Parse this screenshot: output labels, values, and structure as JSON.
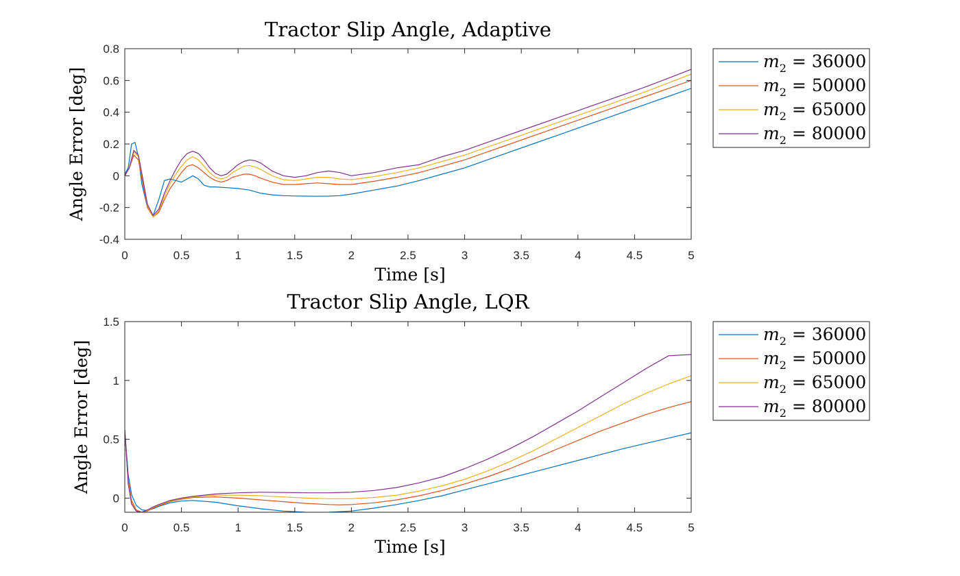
{
  "chart_data": [
    {
      "type": "line",
      "title": "Tractor Slip Angle, Adaptive",
      "xlabel": "Time [s]",
      "ylabel": "Angle Error [deg]",
      "xlim": [
        0,
        5
      ],
      "ylim": [
        -0.4,
        0.8
      ],
      "xticks": [
        0,
        0.5,
        1,
        1.5,
        2,
        2.5,
        3,
        3.5,
        4,
        4.5,
        5
      ],
      "xtick_labels": [
        "0",
        "0.5",
        "1",
        "1.5",
        "2",
        "2.5",
        "3",
        "3.5",
        "4",
        "4.5",
        "5"
      ],
      "yticks": [
        -0.4,
        -0.2,
        0,
        0.2,
        0.4,
        0.6,
        0.8
      ],
      "ytick_labels": [
        "-0.4",
        "-0.2",
        "0",
        "0.2",
        "0.4",
        "0.6",
        "0.8"
      ],
      "grid": false,
      "legend_position": "outside-right",
      "series": [
        {
          "name": "m2 = 36000",
          "legend": {
            "var": "m",
            "sub": "2",
            "rest": " = 36000"
          },
          "color": "#0072BD",
          "x": [
            0,
            0.03,
            0.06,
            0.09,
            0.12,
            0.15,
            0.2,
            0.25,
            0.3,
            0.35,
            0.4,
            0.45,
            0.5,
            0.55,
            0.6,
            0.65,
            0.7,
            0.75,
            0.8,
            0.9,
            1.0,
            1.1,
            1.2,
            1.3,
            1.4,
            1.5,
            1.6,
            1.7,
            1.8,
            1.9,
            2.0,
            2.2,
            2.4,
            2.6,
            2.8,
            3.0,
            3.2,
            3.4,
            3.6,
            3.8,
            4.0,
            4.2,
            4.4,
            4.6,
            4.8,
            5.0
          ],
          "y": [
            0.01,
            0.05,
            0.2,
            0.21,
            0.12,
            -0.05,
            -0.2,
            -0.25,
            -0.15,
            -0.03,
            -0.02,
            -0.03,
            -0.04,
            -0.02,
            0.0,
            -0.02,
            -0.06,
            -0.07,
            -0.07,
            -0.075,
            -0.08,
            -0.09,
            -0.11,
            -0.12,
            -0.125,
            -0.127,
            -0.128,
            -0.129,
            -0.128,
            -0.125,
            -0.115,
            -0.09,
            -0.065,
            -0.03,
            0.01,
            0.05,
            0.1,
            0.15,
            0.2,
            0.25,
            0.3,
            0.35,
            0.4,
            0.45,
            0.5,
            0.55
          ]
        },
        {
          "name": "m2 = 50000",
          "legend": {
            "var": "m",
            "sub": "2",
            "rest": " = 50000"
          },
          "color": "#D95319",
          "x": [
            0,
            0.04,
            0.08,
            0.12,
            0.16,
            0.2,
            0.25,
            0.3,
            0.35,
            0.4,
            0.45,
            0.5,
            0.55,
            0.6,
            0.65,
            0.7,
            0.75,
            0.8,
            0.85,
            0.9,
            0.95,
            1.0,
            1.05,
            1.1,
            1.15,
            1.2,
            1.3,
            1.4,
            1.5,
            1.6,
            1.7,
            1.8,
            1.9,
            2.0,
            2.2,
            2.4,
            2.6,
            2.8,
            3.0,
            3.2,
            3.4,
            3.6,
            3.8,
            4.0,
            4.2,
            4.4,
            4.6,
            4.8,
            5.0
          ],
          "y": [
            0.0,
            0.05,
            0.13,
            0.1,
            -0.05,
            -0.2,
            -0.26,
            -0.23,
            -0.15,
            -0.08,
            -0.03,
            0.02,
            0.06,
            0.07,
            0.05,
            0.02,
            -0.01,
            -0.03,
            -0.04,
            -0.03,
            -0.01,
            0.0,
            0.01,
            0.01,
            0.0,
            -0.015,
            -0.04,
            -0.055,
            -0.055,
            -0.05,
            -0.045,
            -0.05,
            -0.055,
            -0.055,
            -0.035,
            -0.01,
            0.02,
            0.06,
            0.1,
            0.15,
            0.2,
            0.25,
            0.3,
            0.35,
            0.4,
            0.45,
            0.5,
            0.55,
            0.6
          ]
        },
        {
          "name": "m2 = 65000",
          "legend": {
            "var": "m",
            "sub": "2",
            "rest": " = 65000"
          },
          "color": "#EDB120",
          "x": [
            0,
            0.04,
            0.08,
            0.12,
            0.16,
            0.2,
            0.25,
            0.3,
            0.35,
            0.4,
            0.45,
            0.5,
            0.55,
            0.6,
            0.65,
            0.7,
            0.75,
            0.8,
            0.85,
            0.9,
            0.95,
            1.0,
            1.05,
            1.1,
            1.15,
            1.2,
            1.3,
            1.4,
            1.5,
            1.6,
            1.7,
            1.8,
            1.9,
            2.0,
            2.2,
            2.4,
            2.6,
            2.8,
            3.0,
            3.2,
            3.4,
            3.6,
            3.8,
            4.0,
            4.2,
            4.4,
            4.6,
            4.8,
            5.0
          ],
          "y": [
            0.0,
            0.05,
            0.15,
            0.12,
            -0.03,
            -0.19,
            -0.26,
            -0.22,
            -0.13,
            -0.05,
            0.01,
            0.06,
            0.1,
            0.12,
            0.1,
            0.06,
            0.02,
            -0.01,
            -0.02,
            -0.01,
            0.02,
            0.04,
            0.06,
            0.065,
            0.055,
            0.04,
            0.0,
            -0.025,
            -0.03,
            -0.02,
            -0.01,
            -0.01,
            -0.02,
            -0.025,
            -0.005,
            0.02,
            0.05,
            0.09,
            0.13,
            0.18,
            0.23,
            0.28,
            0.33,
            0.38,
            0.43,
            0.48,
            0.53,
            0.585,
            0.64
          ]
        },
        {
          "name": "m2 = 80000",
          "legend": {
            "var": "m",
            "sub": "2",
            "rest": " = 80000"
          },
          "color": "#7E2F8E",
          "x": [
            0,
            0.04,
            0.08,
            0.12,
            0.16,
            0.2,
            0.25,
            0.3,
            0.35,
            0.4,
            0.45,
            0.5,
            0.55,
            0.6,
            0.65,
            0.7,
            0.75,
            0.8,
            0.85,
            0.9,
            0.95,
            1.0,
            1.05,
            1.1,
            1.15,
            1.2,
            1.3,
            1.4,
            1.5,
            1.6,
            1.7,
            1.8,
            1.9,
            2.0,
            2.2,
            2.4,
            2.6,
            2.8,
            3.0,
            3.2,
            3.4,
            3.6,
            3.8,
            4.0,
            4.2,
            4.4,
            4.6,
            4.8,
            5.0
          ],
          "y": [
            0.0,
            0.05,
            0.16,
            0.13,
            -0.02,
            -0.18,
            -0.25,
            -0.21,
            -0.11,
            -0.03,
            0.04,
            0.1,
            0.14,
            0.155,
            0.14,
            0.1,
            0.05,
            0.015,
            0.0,
            0.01,
            0.04,
            0.07,
            0.09,
            0.1,
            0.095,
            0.08,
            0.03,
            0.0,
            -0.01,
            0.0,
            0.02,
            0.03,
            0.02,
            0.0,
            0.02,
            0.05,
            0.07,
            0.12,
            0.16,
            0.21,
            0.26,
            0.31,
            0.36,
            0.41,
            0.46,
            0.51,
            0.56,
            0.615,
            0.67
          ]
        }
      ]
    },
    {
      "type": "line",
      "title": "Tractor Slip Angle, LQR",
      "xlabel": "Time [s]",
      "ylabel": "Angle Error [deg]",
      "xlim": [
        0,
        5
      ],
      "ylim": [
        -0.12,
        1.5
      ],
      "xticks": [
        0,
        0.5,
        1,
        1.5,
        2,
        2.5,
        3,
        3.5,
        4,
        4.5,
        5
      ],
      "xtick_labels": [
        "0",
        "0.5",
        "1",
        "1.5",
        "2",
        "2.5",
        "3",
        "3.5",
        "4",
        "4.5",
        "5"
      ],
      "yticks": [
        0,
        0.5,
        1,
        1.5
      ],
      "ytick_labels": [
        "0",
        "0.5",
        "1",
        "1.5"
      ],
      "grid": false,
      "legend_position": "outside-right",
      "series": [
        {
          "name": "m2 = 36000",
          "legend": {
            "var": "m",
            "sub": "2",
            "rest": " = 36000"
          },
          "color": "#0072BD",
          "x": [
            0,
            0.03,
            0.06,
            0.1,
            0.15,
            0.2,
            0.25,
            0.3,
            0.4,
            0.5,
            0.6,
            0.8,
            1.0,
            1.2,
            1.4,
            1.6,
            1.7,
            1.8,
            2.0,
            2.2,
            2.4,
            2.6,
            2.8,
            3.0,
            3.2,
            3.4,
            3.6,
            3.8,
            4.0,
            4.2,
            4.4,
            4.6,
            4.8,
            5.0
          ],
          "y": [
            0.58,
            0.2,
            0.03,
            -0.06,
            -0.1,
            -0.105,
            -0.09,
            -0.07,
            -0.04,
            -0.025,
            -0.02,
            -0.035,
            -0.065,
            -0.09,
            -0.11,
            -0.12,
            -0.122,
            -0.12,
            -0.11,
            -0.085,
            -0.055,
            -0.02,
            0.02,
            0.07,
            0.12,
            0.17,
            0.22,
            0.27,
            0.32,
            0.37,
            0.42,
            0.465,
            0.51,
            0.555
          ]
        },
        {
          "name": "m2 = 50000",
          "legend": {
            "var": "m",
            "sub": "2",
            "rest": " = 50000"
          },
          "color": "#D95319",
          "x": [
            0,
            0.03,
            0.06,
            0.1,
            0.15,
            0.2,
            0.25,
            0.3,
            0.4,
            0.5,
            0.6,
            0.8,
            1.0,
            1.2,
            1.4,
            1.6,
            1.8,
            1.9,
            2.0,
            2.2,
            2.4,
            2.6,
            2.8,
            3.0,
            3.2,
            3.4,
            3.6,
            3.8,
            4.0,
            4.2,
            4.4,
            4.6,
            4.8,
            5.0
          ],
          "y": [
            0.58,
            0.15,
            -0.02,
            -0.1,
            -0.12,
            -0.11,
            -0.085,
            -0.065,
            -0.03,
            -0.01,
            0.005,
            0.01,
            0.0,
            -0.015,
            -0.03,
            -0.045,
            -0.055,
            -0.057,
            -0.055,
            -0.04,
            -0.015,
            0.02,
            0.065,
            0.12,
            0.18,
            0.25,
            0.33,
            0.41,
            0.49,
            0.57,
            0.64,
            0.71,
            0.77,
            0.82
          ]
        },
        {
          "name": "m2 = 65000",
          "legend": {
            "var": "m",
            "sub": "2",
            "rest": " = 65000"
          },
          "color": "#EDB120",
          "x": [
            0,
            0.03,
            0.06,
            0.1,
            0.15,
            0.2,
            0.25,
            0.3,
            0.4,
            0.5,
            0.6,
            0.8,
            1.0,
            1.2,
            1.4,
            1.6,
            1.8,
            2.0,
            2.2,
            2.4,
            2.6,
            2.8,
            3.0,
            3.2,
            3.4,
            3.6,
            3.8,
            4.0,
            4.2,
            4.4,
            4.6,
            4.8,
            5.0
          ],
          "y": [
            0.58,
            0.13,
            -0.04,
            -0.11,
            -0.12,
            -0.105,
            -0.08,
            -0.06,
            -0.025,
            -0.005,
            0.01,
            0.025,
            0.025,
            0.02,
            0.01,
            0.0,
            -0.005,
            -0.005,
            0.005,
            0.025,
            0.06,
            0.105,
            0.16,
            0.23,
            0.31,
            0.4,
            0.5,
            0.6,
            0.7,
            0.8,
            0.89,
            0.97,
            1.04
          ]
        },
        {
          "name": "m2 = 80000",
          "legend": {
            "var": "m",
            "sub": "2",
            "rest": " = 80000"
          },
          "color": "#7E2F8E",
          "x": [
            0,
            0.03,
            0.06,
            0.1,
            0.15,
            0.2,
            0.25,
            0.3,
            0.4,
            0.5,
            0.6,
            0.8,
            1.0,
            1.2,
            1.4,
            1.6,
            1.8,
            2.0,
            2.2,
            2.4,
            2.6,
            2.8,
            3.0,
            3.2,
            3.4,
            3.6,
            3.8,
            4.0,
            4.2,
            4.4,
            4.6,
            4.8,
            5.0
          ],
          "y": [
            0.58,
            0.12,
            -0.05,
            -0.11,
            -0.12,
            -0.1,
            -0.075,
            -0.055,
            -0.02,
            0.0,
            0.015,
            0.035,
            0.045,
            0.05,
            0.048,
            0.045,
            0.045,
            0.05,
            0.065,
            0.09,
            0.13,
            0.18,
            0.25,
            0.33,
            0.42,
            0.52,
            0.63,
            0.74,
            0.86,
            0.98,
            1.1,
            1.21,
            1.22
          ]
        }
      ]
    }
  ]
}
